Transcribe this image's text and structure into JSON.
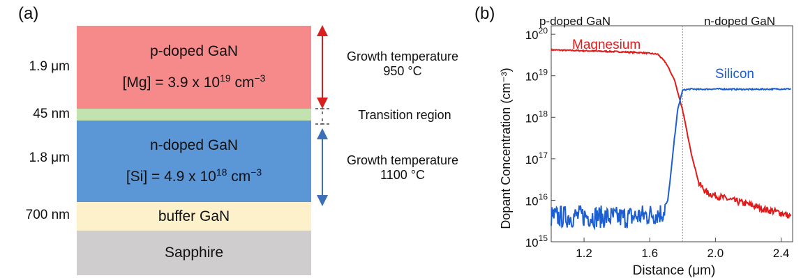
{
  "panel_a": {
    "label": "(a)",
    "layers": {
      "p": {
        "title": "p-doped GaN",
        "formula_pre": "[Mg] = 3.9 x 10",
        "formula_exp": "19",
        "formula_unit": " cm",
        "formula_unit_exp": "−3",
        "thickness": "1.9 μm",
        "color": "#f68a8b"
      },
      "transition": {
        "thickness": "45 nm",
        "color": "#c2e3b0"
      },
      "n": {
        "title": "n-doped GaN",
        "formula_pre": "[Si] = 4.9 x 10",
        "formula_exp": "18",
        "formula_unit": " cm",
        "formula_unit_exp": "−3",
        "thickness": "1.8 μm",
        "color": "#5b97d6"
      },
      "buffer": {
        "title": "buffer GaN",
        "thickness": "700 nm",
        "color": "#fdf1cc"
      },
      "substrate": {
        "title": "Sapphire",
        "color": "#cfcdcd"
      }
    },
    "annotations": {
      "p_growth_line1": "Growth temperature",
      "p_growth_line2": "950 °C",
      "transition": "Transition region",
      "n_growth_line1": "Growth temperature",
      "n_growth_line2": "1100 °C"
    },
    "colors": {
      "red_arrow": "#d62020",
      "blue_arrow": "#3d6fb8"
    }
  },
  "panel_b": {
    "label": "(b)",
    "region_left": "p-doped GaN",
    "region_right": "n-doped GaN",
    "chart_data": {
      "type": "line",
      "xlabel": "Distance (μm)",
      "ylabel": "Dopant Concentration (cm⁻³)",
      "y_scale": "log",
      "xlim": [
        1.0,
        2.47
      ],
      "ylim": [
        1000000000000000.0,
        1.6e+20
      ],
      "x_ticks": [
        1.2,
        1.6,
        2.0,
        2.4
      ],
      "x_tick_labels": [
        "1.2",
        "1.6",
        "2.0",
        "2.4"
      ],
      "y_tick_base": "10",
      "y_tick_exps": [
        "15",
        "16",
        "17",
        "18",
        "19",
        "20"
      ],
      "divider_x": 1.8,
      "series": [
        {
          "name": "Magnesium",
          "color": "#e01b1b",
          "x": [
            1.0,
            1.2,
            1.4,
            1.55,
            1.65,
            1.7,
            1.75,
            1.8,
            1.85,
            1.9,
            1.95,
            2.0,
            2.1,
            2.2,
            2.3,
            2.4,
            2.46
          ],
          "y": [
            4.2e+19,
            4e+19,
            3.8e+19,
            3.6e+19,
            3.3e+19,
            2e+19,
            8e+18,
            1.5e+18,
            1.5e+17,
            2.5e+16,
            1.5e+16,
            1.3e+16,
            1e+16,
            8000000000000000.0,
            6000000000000000.0,
            5000000000000000.0,
            4000000000000000.0
          ]
        },
        {
          "name": "Silicon",
          "color": "#1d5fd1",
          "x": [
            1.0,
            1.1,
            1.2,
            1.3,
            1.4,
            1.5,
            1.6,
            1.68,
            1.71,
            1.73,
            1.75,
            1.77,
            1.8,
            1.85,
            1.9,
            2.0,
            2.2,
            2.4,
            2.46
          ],
          "y": [
            4000000000000000.0,
            4000000000000000.0,
            4200000000000000.0,
            4000000000000000.0,
            3800000000000000.0,
            4000000000000000.0,
            4500000000000000.0,
            5000000000000000.0,
            1e+16,
            5e+16,
            3e+17,
            1.5e+18,
            4.5e+18,
            4.8e+18,
            4.7e+18,
            4.8e+18,
            4.7e+18,
            4.8e+18,
            4.8e+18
          ]
        }
      ]
    }
  }
}
